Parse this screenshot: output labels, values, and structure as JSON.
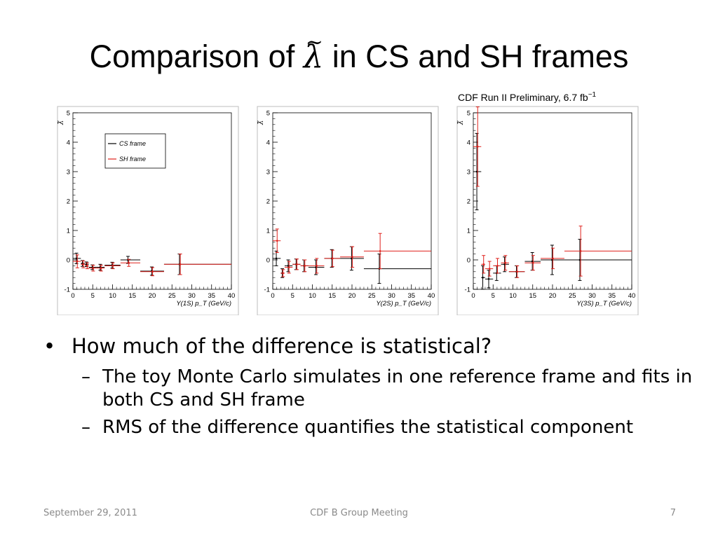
{
  "slide": {
    "title_before": "Comparison of ",
    "title_symbol": "λ",
    "title_after": " in CS and SH frames",
    "preliminary_label": "CDF Run II Preliminary, 6.7 fb",
    "preliminary_exp": "−1"
  },
  "bullets": {
    "main_mark": "•",
    "main": "How much of the difference is statistical?",
    "sub_mark": "–",
    "sub": [
      "The toy Monte Carlo simulates in one reference frame and fits in both CS and SH frame",
      "RMS of the difference quantifies the statistical component"
    ]
  },
  "footer": {
    "date": "September 29, 2011",
    "meeting": "CDF B Group Meeting",
    "page": "7"
  },
  "colors": {
    "cs": "#000000",
    "sh": "#e0201b"
  },
  "chart_data": [
    {
      "type": "scatter",
      "panel": "Υ(1S)",
      "xlabel": "Υ(1S)  p_T  (GeV/c)",
      "ylabel": "λ̃",
      "xlim": [
        0,
        40
      ],
      "ylim": [
        -1,
        5
      ],
      "xticks": [
        0,
        5,
        10,
        15,
        20,
        25,
        30,
        35,
        40
      ],
      "yticks": [
        -1,
        0,
        1,
        2,
        3,
        4,
        5
      ],
      "legend": {
        "placement": "top-left",
        "entries": [
          "CS frame",
          "SH frame"
        ]
      },
      "series": [
        {
          "name": "CS frame",
          "points": [
            {
              "x": 1,
              "xlo": 0,
              "xhi": 2,
              "y": 0.05,
              "err": 0.18
            },
            {
              "x": 2.5,
              "xlo": 2,
              "xhi": 3,
              "y": -0.12,
              "err": 0.1
            },
            {
              "x": 3.5,
              "xlo": 3,
              "xhi": 4,
              "y": -0.15,
              "err": 0.08
            },
            {
              "x": 5,
              "xlo": 4,
              "xhi": 6,
              "y": -0.25,
              "err": 0.08
            },
            {
              "x": 7,
              "xlo": 6,
              "xhi": 8,
              "y": -0.25,
              "err": 0.1
            },
            {
              "x": 10,
              "xlo": 8,
              "xhi": 12,
              "y": -0.18,
              "err": 0.1
            },
            {
              "x": 14,
              "xlo": 12,
              "xhi": 17,
              "y": 0.0,
              "err": 0.12
            },
            {
              "x": 20,
              "xlo": 17,
              "xhi": 23,
              "y": -0.38,
              "err": 0.14
            },
            {
              "x": 27,
              "xlo": 23,
              "xhi": 40,
              "y": -0.15,
              "err": 0.35
            }
          ]
        },
        {
          "name": "SH frame",
          "points": [
            {
              "x": 1,
              "xlo": 0,
              "xhi": 2,
              "y": -0.05,
              "err": 0.22
            },
            {
              "x": 2.5,
              "xlo": 2,
              "xhi": 3,
              "y": -0.15,
              "err": 0.12
            },
            {
              "x": 3.5,
              "xlo": 3,
              "xhi": 4,
              "y": -0.2,
              "err": 0.1
            },
            {
              "x": 5,
              "xlo": 4,
              "xhi": 6,
              "y": -0.28,
              "err": 0.1
            },
            {
              "x": 7,
              "xlo": 6,
              "xhi": 8,
              "y": -0.28,
              "err": 0.1
            },
            {
              "x": 10,
              "xlo": 8,
              "xhi": 12,
              "y": -0.2,
              "err": 0.1
            },
            {
              "x": 14,
              "xlo": 12,
              "xhi": 17,
              "y": -0.1,
              "err": 0.12
            },
            {
              "x": 20,
              "xlo": 17,
              "xhi": 23,
              "y": -0.4,
              "err": 0.14
            },
            {
              "x": 27,
              "xlo": 23,
              "xhi": 40,
              "y": -0.15,
              "err": 0.35
            }
          ]
        }
      ]
    },
    {
      "type": "scatter",
      "panel": "Υ(2S)",
      "xlabel": "Υ(2S)  p_T  (GeV/c)",
      "ylabel": "λ̃",
      "xlim": [
        0,
        40
      ],
      "ylim": [
        -1,
        5
      ],
      "xticks": [
        0,
        5,
        10,
        15,
        20,
        25,
        30,
        35,
        40
      ],
      "yticks": [
        -1,
        0,
        1,
        2,
        3,
        4,
        5
      ],
      "series": [
        {
          "name": "CS frame",
          "points": [
            {
              "x": 1,
              "xlo": 0,
              "xhi": 2,
              "y": 0.05,
              "err": 0.25
            },
            {
              "x": 2.5,
              "xlo": 2,
              "xhi": 3,
              "y": -0.45,
              "err": 0.15
            },
            {
              "x": 4,
              "xlo": 3,
              "xhi": 5,
              "y": -0.2,
              "err": 0.2
            },
            {
              "x": 6,
              "xlo": 5,
              "xhi": 7,
              "y": -0.15,
              "err": 0.18
            },
            {
              "x": 8,
              "xlo": 7,
              "xhi": 9,
              "y": -0.2,
              "err": 0.2
            },
            {
              "x": 11,
              "xlo": 9,
              "xhi": 13,
              "y": -0.25,
              "err": 0.25
            },
            {
              "x": 15,
              "xlo": 13,
              "xhi": 17,
              "y": 0.05,
              "err": 0.3
            },
            {
              "x": 20,
              "xlo": 17,
              "xhi": 23,
              "y": 0.05,
              "err": 0.4
            },
            {
              "x": 27,
              "xlo": 23,
              "xhi": 40,
              "y": -0.3,
              "err": 0.5
            }
          ]
        },
        {
          "name": "SH frame",
          "points": [
            {
              "x": 1,
              "xlo": 0,
              "xhi": 2,
              "y": 0.65,
              "err": 0.4
            },
            {
              "x": 2.5,
              "xlo": 2,
              "xhi": 3,
              "y": -0.45,
              "err": 0.12
            },
            {
              "x": 4,
              "xlo": 3,
              "xhi": 5,
              "y": -0.25,
              "err": 0.2
            },
            {
              "x": 6,
              "xlo": 5,
              "xhi": 7,
              "y": -0.15,
              "err": 0.18
            },
            {
              "x": 8,
              "xlo": 7,
              "xhi": 9,
              "y": -0.2,
              "err": 0.2
            },
            {
              "x": 11,
              "xlo": 9,
              "xhi": 13,
              "y": -0.2,
              "err": 0.25
            },
            {
              "x": 15,
              "xlo": 13,
              "xhi": 17,
              "y": 0.05,
              "err": 0.28
            },
            {
              "x": 20,
              "xlo": 17,
              "xhi": 23,
              "y": 0.1,
              "err": 0.35
            },
            {
              "x": 27,
              "xlo": 23,
              "xhi": 40,
              "y": 0.3,
              "err": 0.6
            }
          ]
        }
      ]
    },
    {
      "type": "scatter",
      "panel": "Υ(3S)",
      "xlabel": "Υ(3S)  p_T  (GeV/c)",
      "ylabel": "λ̃",
      "xlim": [
        0,
        40
      ],
      "ylim": [
        -1,
        5
      ],
      "xticks": [
        0,
        5,
        10,
        15,
        20,
        25,
        30,
        35,
        40
      ],
      "yticks": [
        -1,
        0,
        1,
        2,
        3,
        4,
        5
      ],
      "series": [
        {
          "name": "CS frame",
          "points": [
            {
              "x": 1,
              "xlo": 0,
              "xhi": 2,
              "y": 3.0,
              "err": 1.3
            },
            {
              "x": 2.5,
              "xlo": 2,
              "xhi": 3,
              "y": -0.6,
              "err": 0.4
            },
            {
              "x": 4,
              "xlo": 3,
              "xhi": 5,
              "y": -0.65,
              "err": 0.3
            },
            {
              "x": 6,
              "xlo": 5,
              "xhi": 7,
              "y": -0.45,
              "err": 0.25
            },
            {
              "x": 8,
              "xlo": 7,
              "xhi": 9,
              "y": -0.15,
              "err": 0.25
            },
            {
              "x": 11,
              "xlo": 9,
              "xhi": 13,
              "y": -0.4,
              "err": 0.2
            },
            {
              "x": 15,
              "xlo": 13,
              "xhi": 17,
              "y": -0.05,
              "err": 0.3
            },
            {
              "x": 20,
              "xlo": 17,
              "xhi": 23,
              "y": 0.0,
              "err": 0.5
            },
            {
              "x": 27,
              "xlo": 23,
              "xhi": 40,
              "y": 0.0,
              "err": 0.7
            }
          ]
        },
        {
          "name": "SH frame",
          "points": [
            {
              "x": 1,
              "xlo": 0,
              "xhi": 2,
              "y": 3.85,
              "err": 1.35
            },
            {
              "x": 2.5,
              "xlo": 2,
              "xhi": 3,
              "y": -0.15,
              "err": 0.3
            },
            {
              "x": 4,
              "xlo": 3,
              "xhi": 5,
              "y": -0.3,
              "err": 0.25
            },
            {
              "x": 6,
              "xlo": 5,
              "xhi": 7,
              "y": -0.2,
              "err": 0.25
            },
            {
              "x": 8,
              "xlo": 7,
              "xhi": 9,
              "y": -0.1,
              "err": 0.25
            },
            {
              "x": 11,
              "xlo": 9,
              "xhi": 13,
              "y": -0.4,
              "err": 0.2
            },
            {
              "x": 15,
              "xlo": 13,
              "xhi": 17,
              "y": -0.1,
              "err": 0.25
            },
            {
              "x": 20,
              "xlo": 17,
              "xhi": 23,
              "y": 0.05,
              "err": 0.35
            },
            {
              "x": 27,
              "xlo": 23,
              "xhi": 40,
              "y": 0.3,
              "err": 0.85
            }
          ]
        }
      ]
    }
  ]
}
